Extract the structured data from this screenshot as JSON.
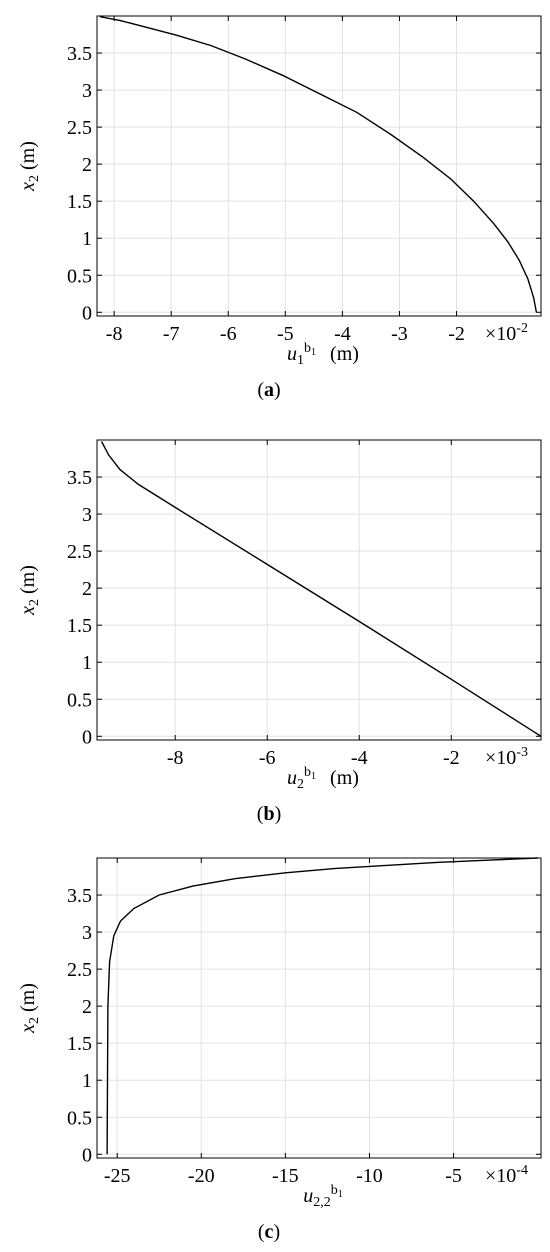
{
  "chart_data": [
    {
      "type": "line",
      "caption_open": "(",
      "caption_letter": "a",
      "caption_close": ")",
      "ylabel_var": "x",
      "ylabel_sub": "2",
      "ylabel_unit": " (m)",
      "xlabel_var": "u",
      "xlabel_sub": "1",
      "xlabel_sup": "b",
      "xlabel_supsub": "1",
      "xlabel_unit": "(m)",
      "multiplier_base": "×10",
      "multiplier_exp": "-2",
      "xlim": [
        -8.3,
        -0.52
      ],
      "ylim": [
        -0.05,
        4.0
      ],
      "xticks": [
        -8,
        -7,
        -6,
        -5,
        -4,
        -3,
        -2
      ],
      "xtick_labels": [
        "-8",
        "-7",
        "-6",
        "-5",
        "-4",
        "-3",
        "-2"
      ],
      "yticks": [
        0,
        0.5,
        1,
        1.5,
        2,
        2.5,
        3,
        3.5
      ],
      "ytick_labels": [
        "0",
        "0.5",
        "1",
        "1.5",
        "2",
        "2.5",
        "3",
        "3.5"
      ],
      "grid": true,
      "series": [
        {
          "x": [
            -0.6,
            -0.65,
            -0.75,
            -0.9,
            -1.1,
            -1.35,
            -1.7,
            -2.1,
            -2.6,
            -3.15,
            -3.75,
            -4.4,
            -5.05,
            -5.7,
            -6.3,
            -6.9,
            -7.45,
            -7.9,
            -8.25
          ],
          "y": [
            0.0,
            0.2,
            0.45,
            0.7,
            0.95,
            1.2,
            1.5,
            1.8,
            2.1,
            2.4,
            2.7,
            2.95,
            3.2,
            3.42,
            3.6,
            3.74,
            3.85,
            3.94,
            3.99
          ]
        }
      ]
    },
    {
      "type": "line",
      "caption_open": "(",
      "caption_letter": "b",
      "caption_close": ")",
      "ylabel_var": "x",
      "ylabel_sub": "2",
      "ylabel_unit": " (m)",
      "xlabel_var": "u",
      "xlabel_sub": "2",
      "xlabel_sup": "b",
      "xlabel_supsub": "1",
      "xlabel_unit": "(m)",
      "multiplier_base": "×10",
      "multiplier_exp": "-3",
      "xlim": [
        -9.7,
        -0.05
      ],
      "ylim": [
        -0.05,
        4.0
      ],
      "xticks": [
        -8,
        -6,
        -4,
        -2
      ],
      "xtick_labels": [
        "-8",
        "-6",
        "-4",
        "-2"
      ],
      "yticks": [
        0,
        0.5,
        1,
        1.5,
        2,
        2.5,
        3,
        3.5
      ],
      "ytick_labels": [
        "0",
        "0.5",
        "1",
        "1.5",
        "2",
        "2.5",
        "3",
        "3.5"
      ],
      "grid": true,
      "series": [
        {
          "x": [
            -0.05,
            -2.0,
            -4.0,
            -6.0,
            -8.0,
            -8.8,
            -9.2,
            -9.45,
            -9.6
          ],
          "y": [
            0.0,
            0.77,
            1.55,
            2.32,
            3.09,
            3.4,
            3.6,
            3.8,
            3.98
          ]
        }
      ]
    },
    {
      "type": "line",
      "caption_open": "(",
      "caption_letter": "c",
      "caption_close": ")",
      "ylabel_var": "x",
      "ylabel_sub": "2",
      "ylabel_unit": " (m)",
      "xlabel_var": "u",
      "xlabel_sub": "2,2",
      "xlabel_sup": "b",
      "xlabel_supsub": "1",
      "xlabel_unit": "",
      "multiplier_base": "×10",
      "multiplier_exp": "-4",
      "xlim": [
        -26.2,
        0.2
      ],
      "ylim": [
        -0.05,
        4.0
      ],
      "xticks": [
        -25,
        -20,
        -15,
        -10,
        -5
      ],
      "xtick_labels": [
        "-25",
        "-20",
        "-15",
        "-10",
        "-5"
      ],
      "yticks": [
        0,
        0.5,
        1,
        1.5,
        2,
        2.5,
        3,
        3.5
      ],
      "ytick_labels": [
        "0",
        "0.5",
        "1",
        "1.5",
        "2",
        "2.5",
        "3",
        "3.5"
      ],
      "grid": true,
      "series": [
        {
          "x": [
            -25.6,
            -25.55,
            -25.45,
            -25.2,
            -24.8,
            -24.0,
            -22.5,
            -20.5,
            -18.0,
            -15.0,
            -12.0,
            -9.0,
            -6.0,
            -3.0,
            0.0
          ],
          "y": [
            0.0,
            2.0,
            2.6,
            2.95,
            3.15,
            3.32,
            3.5,
            3.62,
            3.72,
            3.8,
            3.86,
            3.9,
            3.94,
            3.97,
            4.0
          ]
        }
      ]
    }
  ]
}
